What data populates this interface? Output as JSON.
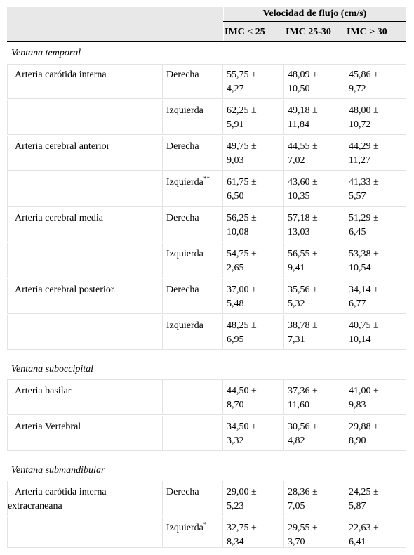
{
  "header": {
    "group_title": "Velocidad de flujo (cm/s)",
    "col_bmi_lt25": "IMC < 25",
    "col_bmi_25_30": "IMC 25-30",
    "col_bmi_gt30": "IMC > 30"
  },
  "sections": {
    "temporal": "Ventana temporal",
    "suboccipital": "Ventana suboccipital",
    "submandibular": "Ventana submandibular"
  },
  "rows": [
    {
      "artery": "Arteria carótida interna",
      "side": "Derecha",
      "side_mark": "",
      "v1a": "55,75 ±",
      "v1b": "4,27",
      "v2a": "48,09 ±",
      "v2b": "10,50",
      "v3a": "45,86 ±",
      "v3b": "9,72"
    },
    {
      "artery": "",
      "side": "Izquierda",
      "side_mark": "",
      "v1a": "62,25 ±",
      "v1b": "5,91",
      "v2a": "49,18 ±",
      "v2b": "11,84",
      "v3a": "48,00 ±",
      "v3b": "10,72"
    },
    {
      "artery": "Arteria cerebral anterior",
      "side": "Derecha",
      "side_mark": "",
      "v1a": "49,75 ±",
      "v1b": "9,03",
      "v2a": "44,55 ±",
      "v2b": "7,02",
      "v3a": "44,29 ±",
      "v3b": "11,27"
    },
    {
      "artery": "",
      "side": "Izquierda",
      "side_mark": "**",
      "v1a": "61,75 ±",
      "v1b": "6,50",
      "v2a": "43,60 ±",
      "v2b": "10,35",
      "v3a": "41,33 ±",
      "v3b": "5,57"
    },
    {
      "artery": "Arteria cerebral media",
      "side": "Derecha",
      "side_mark": "",
      "v1a": "56,25 ±",
      "v1b": "10,08",
      "v2a": "57,18 ±",
      "v2b": "13,03",
      "v3a": "51,29 ±",
      "v3b": "6,45"
    },
    {
      "artery": "",
      "side": "Izquierda",
      "side_mark": "",
      "v1a": "54,75 ±",
      "v1b": "2,65",
      "v2a": "56,55 ±",
      "v2b": "9,41",
      "v3a": "53,38 ±",
      "v3b": "10,54"
    },
    {
      "artery": "Arteria cerebral posterior",
      "side": "Derecha",
      "side_mark": "",
      "v1a": "37,00 ±",
      "v1b": "5,48",
      "v2a": "35,56 ±",
      "v2b": "5,32",
      "v3a": "34,14 ±",
      "v3b": "6,77"
    },
    {
      "artery": "",
      "side": "Izquierda",
      "side_mark": "",
      "v1a": "48,25 ±",
      "v1b": "6,95",
      "v2a": "38,78 ±",
      "v2b": "7,31",
      "v3a": "40,75 ±",
      "v3b": "10,14"
    },
    {
      "artery": "Arteria basilar",
      "side": "",
      "side_mark": "",
      "v1a": "44,50 ±",
      "v1b": "8,70",
      "v2a": "37,36 ±",
      "v2b": "11,60",
      "v3a": "41,00 ±",
      "v3b": "9,83"
    },
    {
      "artery": "Arteria Vertebral",
      "side": "",
      "side_mark": "",
      "v1a": "34,50 ±",
      "v1b": "3,32",
      "v2a": "30,56 ±",
      "v2b": "4,82",
      "v3a": "29,88 ±",
      "v3b": "8,90"
    },
    {
      "artery": "Arteria carótida interna extracraneana",
      "side": "Derecha",
      "side_mark": "",
      "v1a": "29,00 ±",
      "v1b": "5,23",
      "v2a": "28,36 ±",
      "v2b": "7,05",
      "v3a": "24,25 ±",
      "v3b": "5,87"
    },
    {
      "artery": "",
      "side": "Izquierda",
      "side_mark": "*",
      "v1a": "32,75 ±",
      "v1b": "8,34",
      "v2a": "29,55 ±",
      "v2b": "3,70",
      "v3a": "22,63 ±",
      "v3b": "6,41"
    }
  ]
}
